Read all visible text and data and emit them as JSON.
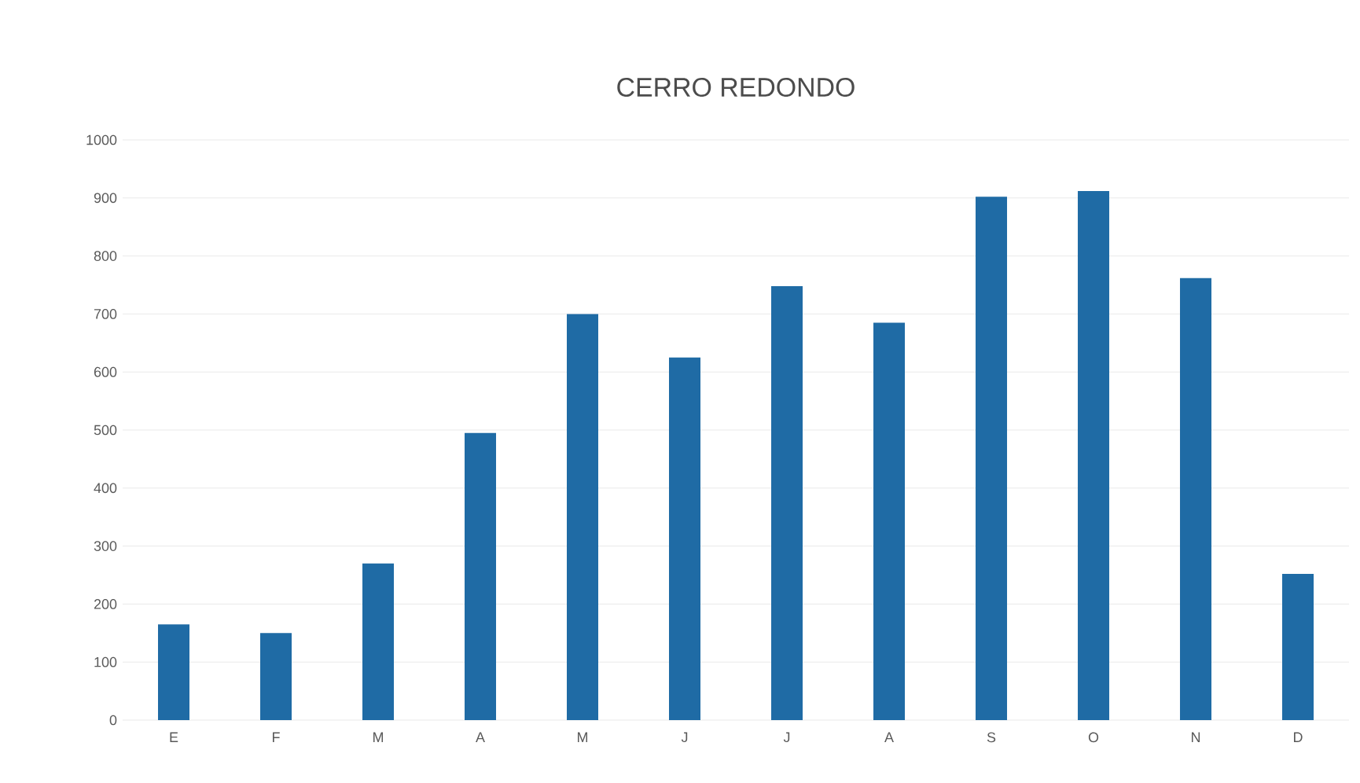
{
  "chart_data": {
    "type": "bar",
    "title": "CERRO REDONDO",
    "categories": [
      "E",
      "F",
      "M",
      "A",
      "M",
      "J",
      "J",
      "A",
      "S",
      "O",
      "N",
      "D"
    ],
    "values": [
      165,
      150,
      270,
      495,
      700,
      625,
      748,
      685,
      902,
      912,
      762,
      252
    ],
    "color": "#1f6ba5",
    "ylim": [
      0,
      1000
    ],
    "yticks": [
      0,
      100,
      200,
      300,
      400,
      500,
      600,
      700,
      800,
      900,
      1000
    ],
    "grid": "y"
  }
}
